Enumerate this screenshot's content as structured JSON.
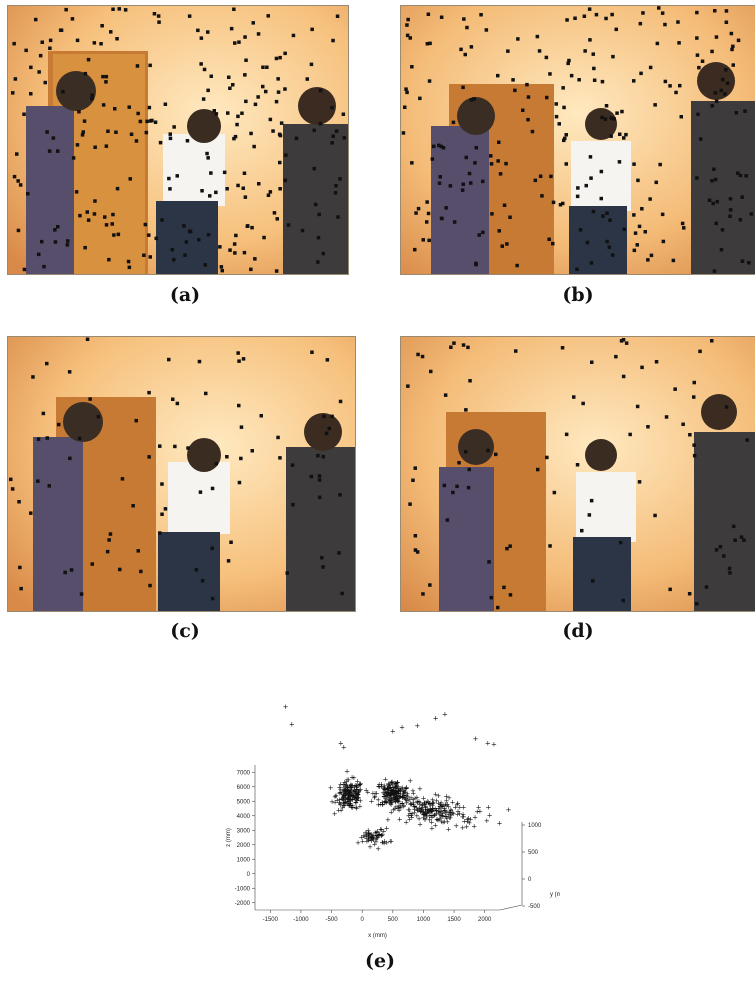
{
  "figure": {
    "captions": [
      "(a)",
      "(b)",
      "(c)",
      "(d)",
      "(e)"
    ],
    "panels": [
      {
        "id": "a",
        "content": "photo of three people in a room with dense feature points"
      },
      {
        "id": "b",
        "content": "photo of three people in a room with dense feature points"
      },
      {
        "id": "c",
        "content": "photo of three people in a room with sparse feature points"
      },
      {
        "id": "d",
        "content": "photo of three people in a room with sparse feature points"
      }
    ]
  },
  "chart_data": {
    "type": "scatter",
    "marker": "+",
    "xlabel": "x (mm)",
    "ylabel": "y (mm)",
    "zlabel": "z (mm)",
    "x_ticks": [
      "-1500",
      "-1000",
      "-500",
      "0",
      "500",
      "1000",
      "1500",
      "2000"
    ],
    "y_ticks": [
      "-500",
      "0",
      "500",
      "1000"
    ],
    "z_ticks": [
      "7000",
      "6000",
      "5000",
      "4000",
      "3000",
      "2000",
      "1000",
      "0",
      "-1000",
      "-2000"
    ],
    "xlim": [
      -1750,
      2250
    ],
    "zlim": [
      -2500,
      7500
    ],
    "clusters": [
      {
        "x": -200,
        "z": 5400,
        "sx": 110,
        "sz": 500,
        "n": 180
      },
      {
        "x": 500,
        "z": 5500,
        "sx": 140,
        "sz": 450,
        "n": 200
      },
      {
        "x": 1050,
        "z": 4400,
        "sx": 230,
        "sz": 450,
        "n": 170
      },
      {
        "x": 200,
        "z": 2500,
        "sx": 120,
        "sz": 300,
        "n": 60
      },
      {
        "x": 1600,
        "z": 3900,
        "sx": 300,
        "sz": 400,
        "n": 40
      }
    ],
    "outliers": [
      [
        -1250,
        11500
      ],
      [
        -1150,
        10300
      ],
      [
        -350,
        9000
      ],
      [
        -300,
        8700
      ],
      [
        500,
        9800
      ],
      [
        1200,
        10700
      ],
      [
        1350,
        11000
      ],
      [
        900,
        10200
      ],
      [
        1850,
        9300
      ],
      [
        2050,
        9000
      ],
      [
        2150,
        8900
      ],
      [
        650,
        10100
      ]
    ]
  }
}
